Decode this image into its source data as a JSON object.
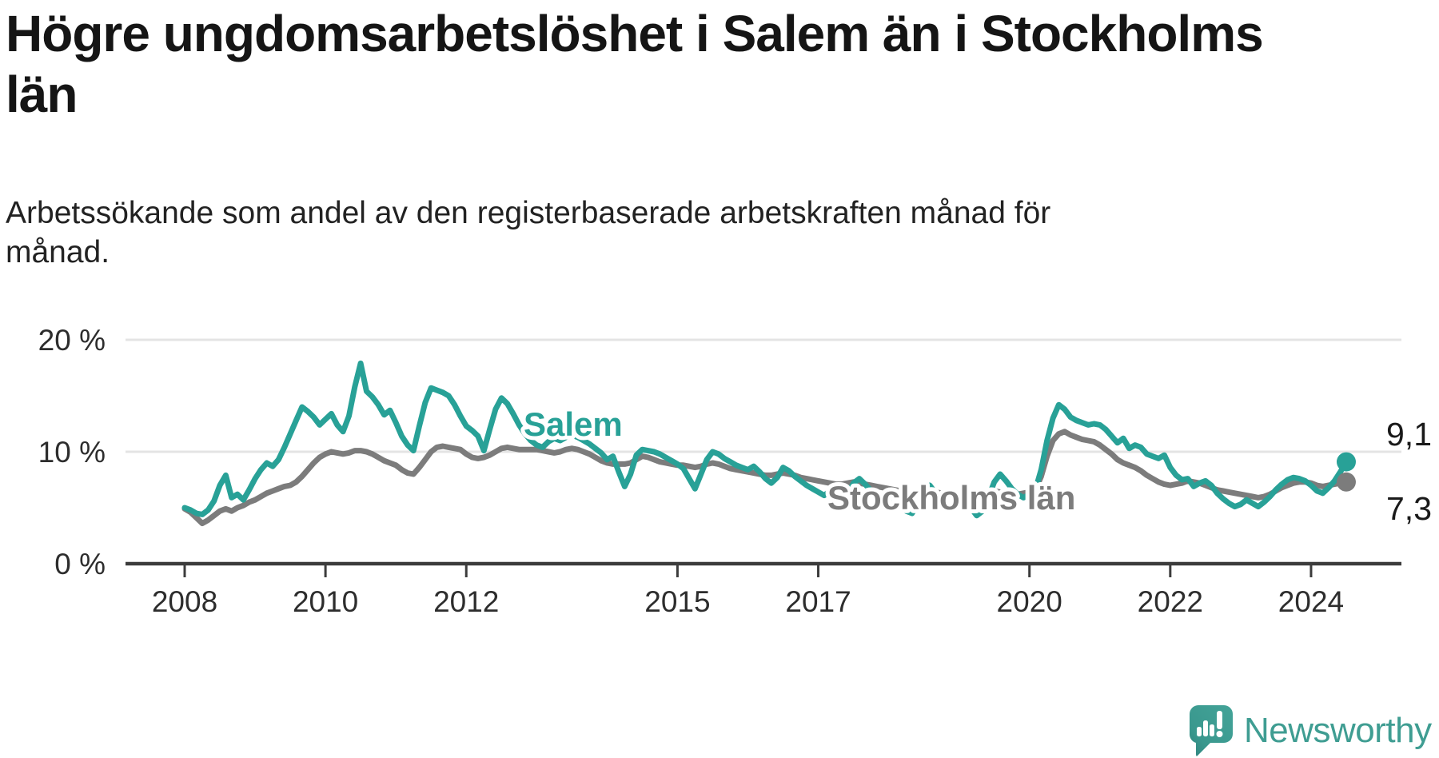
{
  "header": {
    "title": "Högre ungdomsarbetslöshet i Salem än i Stockholms län",
    "title_lines": [
      "Högre ungdomsarbetslöshet i Salem än i Stockholms",
      "län"
    ],
    "subtitle": "Arbetssökande som andel av den registerbaserade arbetskraften månad för månad.",
    "subtitle_lines": [
      "Arbetssökande som andel av den registerbaserade arbetskraften månad för",
      "månad."
    ]
  },
  "branding": {
    "name": "Newsworthy",
    "logo_icon": "speech-bubble-bar-chart-icon"
  },
  "colors": {
    "salem": "#28a197",
    "stockholm": "#7c7c7c",
    "grid": "#e4e4e4",
    "axis": "#3c3c3c",
    "tick_text": "#2d2d2d",
    "end_label_text": "#1a1a1a",
    "brand": "#3f9d92"
  },
  "chart_data": {
    "type": "line",
    "title": "Högre ungdomsarbetslöshet i Salem än i Stockholms län",
    "frequency": "monthly",
    "x_start": "2008-01",
    "x_end": "2024-07",
    "grid": "horizontal",
    "legend_position": "inline-labels",
    "ylim": [
      0,
      21.5
    ],
    "y_ticks": [
      {
        "label": "0 %",
        "value": 0
      },
      {
        "label": "10 %",
        "value": 10
      },
      {
        "label": "20 %",
        "value": 20
      }
    ],
    "x_ticks": [
      {
        "label": "2008",
        "year": 2008
      },
      {
        "label": "2010",
        "year": 2010
      },
      {
        "label": "2012",
        "year": 2012
      },
      {
        "label": "2015",
        "year": 2015
      },
      {
        "label": "2017",
        "year": 2017
      },
      {
        "label": "2020",
        "year": 2020
      },
      {
        "label": "2022",
        "year": 2022
      },
      {
        "label": "2024",
        "year": 2024
      }
    ],
    "series": [
      {
        "name": "Stockholms län",
        "color": "#7c7c7c",
        "end_label": "7,3 %",
        "values": [
          4.9,
          4.6,
          4.1,
          3.6,
          3.9,
          4.3,
          4.7,
          4.9,
          4.7,
          5.0,
          5.2,
          5.5,
          5.7,
          6.0,
          6.3,
          6.5,
          6.7,
          6.9,
          7.0,
          7.3,
          7.8,
          8.4,
          9.0,
          9.5,
          9.8,
          10.0,
          9.9,
          9.8,
          9.9,
          10.1,
          10.1,
          10.0,
          9.8,
          9.5,
          9.2,
          9.0,
          8.8,
          8.4,
          8.1,
          8.0,
          8.6,
          9.3,
          10.0,
          10.4,
          10.5,
          10.4,
          10.3,
          10.2,
          9.8,
          9.5,
          9.4,
          9.5,
          9.7,
          10.0,
          10.3,
          10.4,
          10.3,
          10.2,
          10.2,
          10.2,
          10.2,
          10.1,
          10.0,
          9.9,
          10.0,
          10.2,
          10.3,
          10.2,
          10.0,
          9.8,
          9.5,
          9.2,
          9.0,
          8.9,
          8.9,
          8.9,
          9.0,
          9.3,
          9.6,
          9.5,
          9.3,
          9.1,
          9.0,
          8.9,
          8.8,
          8.8,
          8.7,
          8.6,
          8.7,
          8.9,
          9.0,
          8.9,
          8.7,
          8.5,
          8.4,
          8.3,
          8.2,
          8.1,
          8.0,
          7.9,
          7.9,
          8.0,
          8.1,
          8.0,
          7.9,
          7.7,
          7.6,
          7.5,
          7.4,
          7.3,
          7.2,
          7.1,
          7.1,
          7.2,
          7.3,
          7.2,
          7.1,
          7.0,
          6.9,
          6.8,
          6.7,
          6.6,
          6.5,
          6.4,
          6.4,
          6.5,
          6.6,
          6.5,
          6.4,
          6.3,
          6.2,
          6.2,
          6.2,
          6.2,
          6.1,
          6.0,
          6.1,
          6.3,
          6.5,
          6.4,
          6.3,
          6.2,
          6.2,
          6.3,
          6.4,
          6.6,
          7.8,
          9.6,
          11.0,
          11.6,
          11.8,
          11.5,
          11.3,
          11.1,
          11.0,
          10.9,
          10.6,
          10.2,
          9.8,
          9.3,
          9.0,
          8.8,
          8.6,
          8.3,
          7.9,
          7.6,
          7.3,
          7.1,
          7.0,
          7.1,
          7.2,
          7.4,
          7.3,
          7.2,
          7.0,
          6.8,
          6.6,
          6.5,
          6.4,
          6.3,
          6.2,
          6.1,
          6.0,
          5.9,
          6.0,
          6.2,
          6.5,
          6.8,
          7.0,
          7.2,
          7.3,
          7.3,
          7.2,
          7.0,
          6.9,
          7.0,
          7.1,
          7.2,
          7.3
        ]
      },
      {
        "name": "Salem",
        "color": "#28a197",
        "end_label": "9,1 %",
        "values": [
          5.0,
          4.8,
          4.5,
          4.4,
          4.8,
          5.6,
          7.0,
          7.9,
          5.9,
          6.2,
          5.7,
          6.6,
          7.6,
          8.4,
          9.0,
          8.7,
          9.3,
          10.4,
          11.6,
          12.8,
          14.0,
          13.6,
          13.1,
          12.4,
          12.9,
          13.4,
          12.4,
          11.8,
          13.2,
          15.8,
          17.9,
          15.4,
          14.9,
          14.2,
          13.3,
          13.7,
          12.6,
          11.4,
          10.6,
          10.1,
          12.3,
          14.4,
          15.7,
          15.5,
          15.3,
          15.0,
          14.2,
          13.2,
          12.3,
          11.9,
          11.4,
          10.1,
          12.0,
          13.8,
          14.8,
          14.3,
          13.4,
          12.4,
          11.6,
          11.0,
          10.6,
          10.4,
          10.9,
          11.2,
          11.0,
          11.3,
          11.5,
          11.3,
          11.0,
          10.7,
          10.3,
          9.9,
          9.3,
          9.6,
          8.2,
          6.9,
          8.0,
          9.7,
          10.2,
          10.1,
          10.0,
          9.8,
          9.5,
          9.2,
          8.9,
          8.5,
          7.6,
          6.7,
          8.0,
          9.3,
          10.0,
          9.8,
          9.4,
          9.1,
          8.8,
          8.6,
          8.4,
          8.7,
          8.2,
          7.6,
          7.2,
          7.7,
          8.6,
          8.3,
          7.8,
          7.4,
          7.0,
          6.7,
          6.4,
          6.1,
          6.5,
          5.8,
          5.4,
          6.1,
          7.2,
          7.6,
          7.1,
          6.5,
          6.0,
          5.7,
          5.5,
          5.8,
          5.2,
          4.7,
          4.5,
          5.3,
          6.6,
          7.0,
          6.3,
          5.7,
          5.2,
          5.0,
          5.3,
          5.6,
          5.0,
          4.3,
          4.7,
          5.9,
          7.3,
          8.0,
          7.4,
          6.7,
          6.2,
          5.9,
          6.2,
          6.6,
          8.4,
          11.0,
          13.0,
          14.2,
          13.8,
          13.1,
          12.8,
          12.6,
          12.4,
          12.5,
          12.4,
          12.0,
          11.4,
          10.8,
          11.2,
          10.3,
          10.6,
          10.4,
          9.8,
          9.6,
          9.4,
          9.7,
          8.6,
          7.9,
          7.5,
          7.6,
          6.9,
          7.2,
          7.4,
          7.0,
          6.3,
          5.8,
          5.4,
          5.1,
          5.3,
          5.7,
          5.4,
          5.1,
          5.5,
          6.0,
          6.6,
          7.1,
          7.5,
          7.7,
          7.6,
          7.4,
          7.0,
          6.5,
          6.3,
          6.8,
          7.4,
          8.2,
          9.1
        ]
      }
    ]
  }
}
